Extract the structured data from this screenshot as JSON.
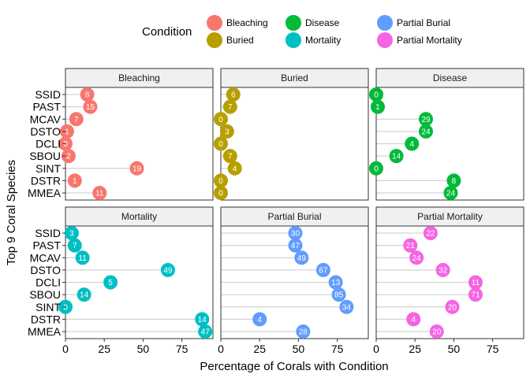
{
  "chart_data": {
    "type": "lollipop-facet",
    "xlabel": "Percentage of Corals with Condition",
    "ylabel": "Top 9 Coral Species",
    "xlim": [
      0,
      95
    ],
    "xticks": [
      0,
      25,
      50,
      75
    ],
    "species": [
      "SSID",
      "PAST",
      "MCAV",
      "DSTO",
      "DCLI",
      "SBOU",
      "SINT",
      "DSTR",
      "MMEA"
    ],
    "legend": {
      "title": "Condition",
      "placement": "top",
      "entries": [
        {
          "name": "Bleaching",
          "color": "#F8766D"
        },
        {
          "name": "Buried",
          "color": "#B79F00"
        },
        {
          "name": "Disease",
          "color": "#00BA38"
        },
        {
          "name": "Mortality",
          "color": "#00BFC4"
        },
        {
          "name": "Partial Burial",
          "color": "#619CFF"
        },
        {
          "name": "Partial Mortality",
          "color": "#F564E3"
        }
      ]
    },
    "panels": [
      {
        "name": "Bleaching",
        "color": "#F8766D",
        "values": [
          14,
          16,
          7,
          1,
          0,
          2,
          46,
          6,
          22
        ],
        "labels": [
          "8",
          "15",
          "7",
          "1",
          "0",
          "2",
          "19",
          "1",
          "11"
        ]
      },
      {
        "name": "Buried",
        "color": "#B79F00",
        "values": [
          8,
          6,
          0,
          4,
          0,
          6,
          9,
          0,
          0
        ],
        "labels": [
          "6",
          "7",
          "0",
          "3",
          "0",
          "7",
          "4",
          "0",
          "0"
        ]
      },
      {
        "name": "Disease",
        "color": "#00BA38",
        "values": [
          0,
          1,
          32,
          32,
          23,
          13,
          0,
          50,
          48
        ],
        "labels": [
          "0",
          "1",
          "29",
          "24",
          "4",
          "14",
          "0",
          "8",
          "24"
        ]
      },
      {
        "name": "Mortality",
        "color": "#00BFC4",
        "values": [
          4,
          6,
          11,
          66,
          29,
          12,
          0,
          88,
          90
        ],
        "labels": [
          "3",
          "7",
          "11",
          "49",
          "5",
          "14",
          "0",
          "14",
          "47"
        ]
      },
      {
        "name": "Partial Burial",
        "color": "#619CFF",
        "values": [
          48,
          48,
          52,
          66,
          74,
          76,
          81,
          25,
          53
        ],
        "labels": [
          "30",
          "47",
          "49",
          "67",
          "13",
          "85",
          "34",
          "4",
          "28"
        ]
      },
      {
        "name": "Partial Mortality",
        "color": "#F564E3",
        "values": [
          35,
          22,
          26,
          43,
          64,
          64,
          49,
          24,
          39
        ],
        "labels": [
          "22",
          "21",
          "24",
          "32",
          "11",
          "71",
          "20",
          "4",
          "20"
        ]
      }
    ]
  }
}
